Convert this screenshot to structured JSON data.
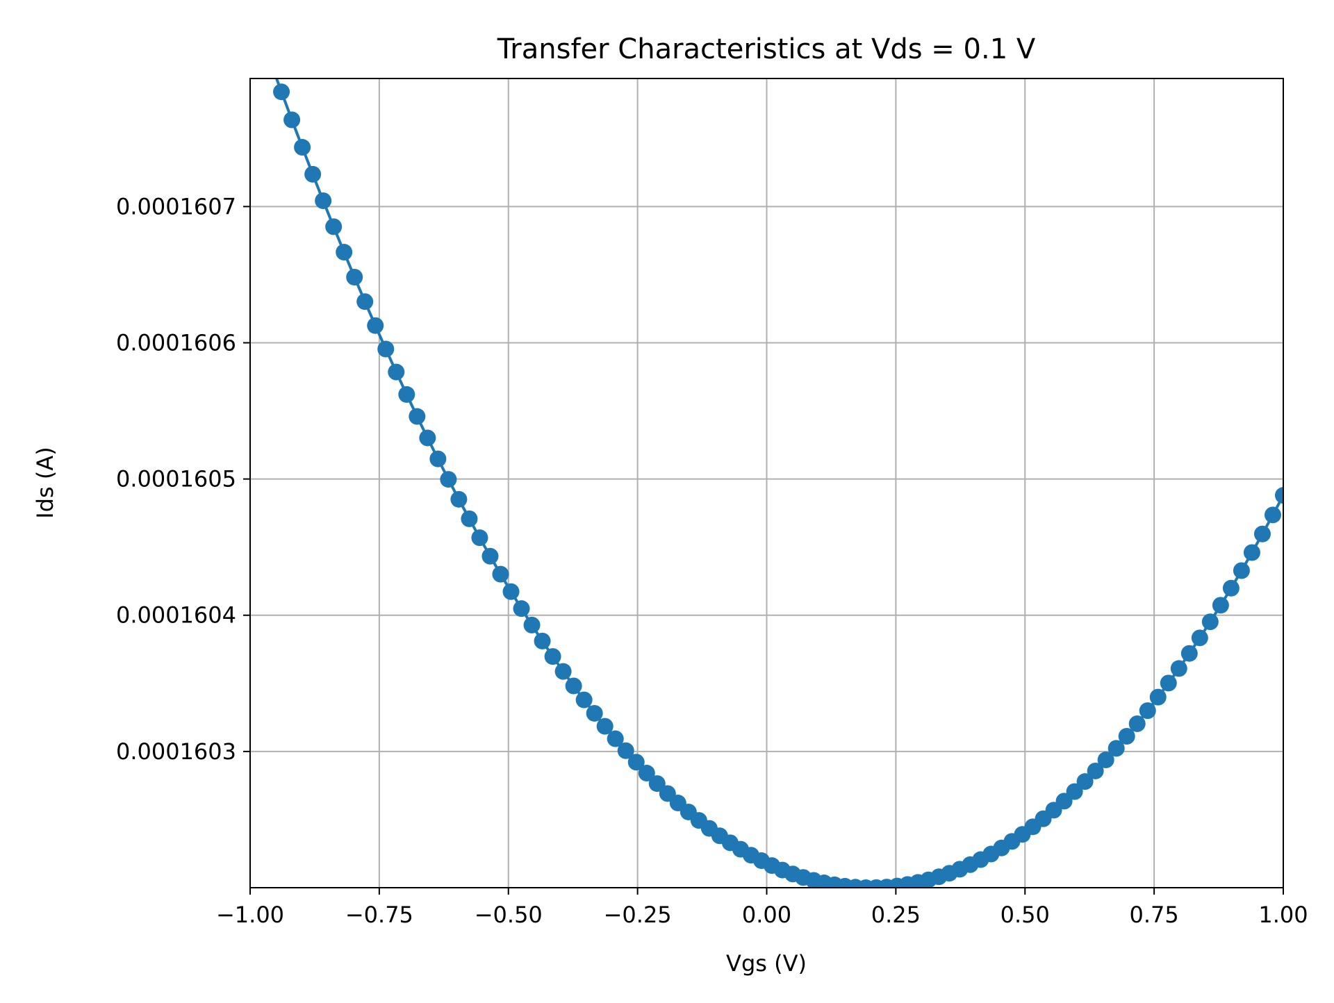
{
  "chart_data": {
    "type": "line",
    "title": "Transfer Characteristics at Vds = 0.1 V",
    "xlabel": "Vgs (V)",
    "ylabel": "Ids (A)",
    "xlim": [
      -1.0,
      1.0
    ],
    "ylim": [
      0.0001602,
      0.000160794
    ],
    "grid": true,
    "xticks": [
      -1.0,
      -0.75,
      -0.5,
      -0.25,
      0.0,
      0.25,
      0.5,
      0.75,
      1.0
    ],
    "xtick_labels": [
      "−1.00",
      "−0.75",
      "−0.50",
      "−0.25",
      "0.00",
      "0.25",
      "0.50",
      "0.75",
      "1.00"
    ],
    "yticks": [
      0.0001603,
      0.0001604,
      0.0001605,
      0.0001606,
      0.0001607
    ],
    "ytick_labels": [
      "0.0001603",
      "0.0001604",
      "0.0001605",
      "0.0001606",
      "0.0001607"
    ],
    "series": [
      {
        "color": "#1f77b4",
        "marker": "circle",
        "vertex_vgs": 0.2,
        "min_ids": 0.0001602,
        "curvature": 4.5e-07,
        "x_start": -1.0,
        "x_end": 1.0,
        "points": 100
      }
    ]
  }
}
